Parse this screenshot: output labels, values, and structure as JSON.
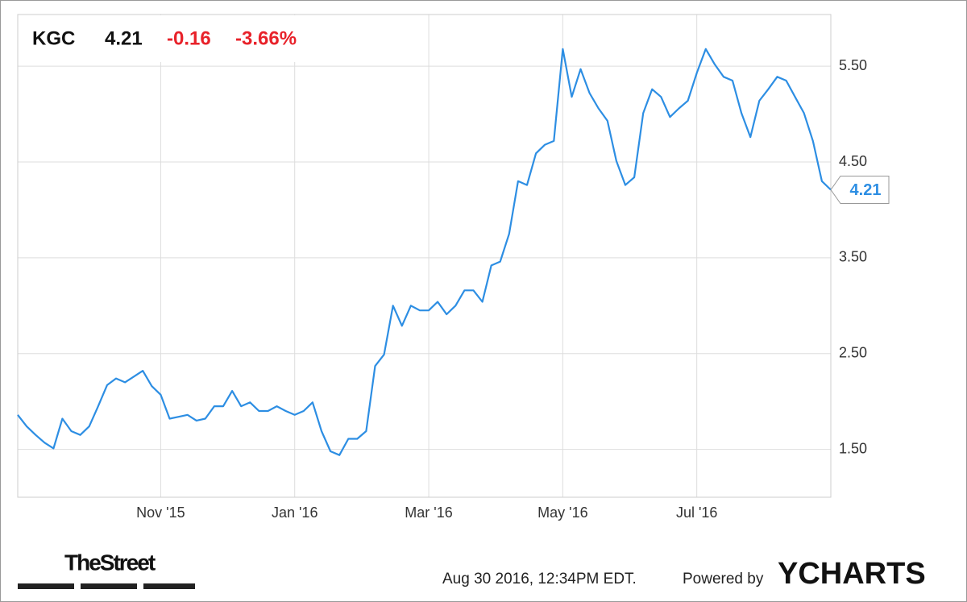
{
  "chart_data": {
    "type": "line",
    "header": {
      "symbol": "KGC",
      "change": "-0.16",
      "change_pct": "-3.66%"
    },
    "categories": [
      null,
      null,
      null,
      null,
      null,
      null,
      null,
      null,
      null,
      null,
      null,
      null,
      null,
      null,
      null,
      null,
      "Nov '15",
      null,
      null,
      null,
      null,
      null,
      null,
      null,
      null,
      null,
      null,
      null,
      null,
      null,
      null,
      "Jan '16",
      null,
      null,
      null,
      null,
      null,
      null,
      null,
      null,
      null,
      null,
      null,
      null,
      null,
      null,
      "Mar '16",
      null,
      null,
      null,
      null,
      null,
      null,
      null,
      null,
      null,
      null,
      null,
      null,
      null,
      null,
      "May '16",
      null,
      null,
      null,
      null,
      null,
      null,
      null,
      null,
      null,
      null,
      null,
      null,
      null,
      null,
      "Jul '16",
      null,
      null,
      null,
      null,
      null,
      null,
      null,
      null,
      null,
      null,
      null,
      null,
      null,
      null,
      null
    ],
    "series": [
      {
        "name": "KGC",
        "color": "#2d8ee3",
        "values": [
          1.86,
          1.74,
          1.65,
          1.57,
          1.51,
          1.82,
          1.69,
          1.65,
          1.74,
          1.95,
          2.17,
          2.24,
          2.2,
          2.26,
          2.32,
          2.16,
          2.07,
          1.82,
          1.84,
          1.86,
          1.8,
          1.82,
          1.95,
          1.95,
          2.11,
          1.95,
          1.99,
          1.9,
          1.9,
          1.95,
          1.9,
          1.86,
          1.9,
          1.99,
          1.69,
          1.48,
          1.44,
          1.61,
          1.61,
          1.69,
          2.37,
          2.49,
          3.0,
          2.79,
          3.0,
          2.95,
          2.95,
          3.04,
          2.91,
          3.0,
          3.16,
          3.16,
          3.04,
          3.42,
          3.46,
          3.75,
          4.3,
          4.26,
          4.59,
          4.68,
          4.72,
          5.68,
          5.18,
          5.47,
          5.22,
          5.06,
          4.93,
          4.51,
          4.26,
          4.34,
          5.01,
          5.26,
          5.18,
          4.97,
          5.06,
          5.14,
          5.43,
          5.68,
          5.52,
          5.39,
          5.35,
          5.01,
          4.76,
          5.14,
          5.26,
          5.39,
          5.35,
          5.18,
          5.01,
          4.72,
          4.3,
          4.21
        ]
      }
    ],
    "ylim": [
      1.0,
      6.04
    ],
    "yticks": [
      {
        "value": 1.5,
        "label": "1.50"
      },
      {
        "value": 2.5,
        "label": "2.50"
      },
      {
        "value": 3.5,
        "label": "3.50"
      },
      {
        "value": 4.5,
        "label": "4.50"
      },
      {
        "value": 5.5,
        "label": "5.50"
      }
    ],
    "grid": true,
    "source": "TheStreet",
    "timestamp": "Aug 30 2016, 12:34PM EDT.",
    "powered_by": "Powered by",
    "brand": "YCHARTS"
  }
}
